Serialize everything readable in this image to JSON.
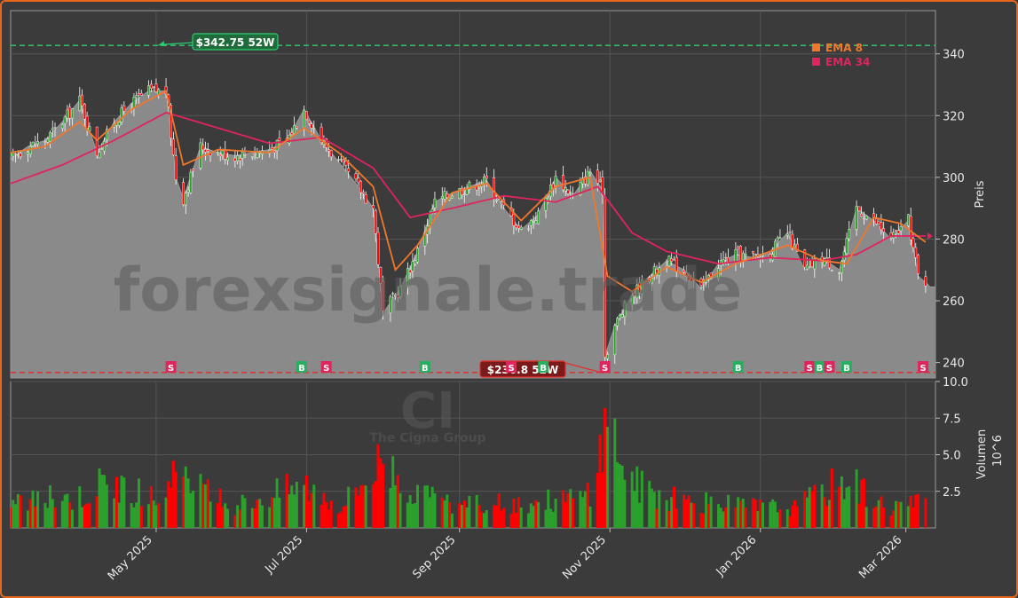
{
  "colors": {
    "background": "#3b3b3b",
    "panel": "#3b3b3b",
    "area_fill": "#8a8a8a",
    "grid": "#555555",
    "up": "#2ca02c",
    "down": "#ff0000",
    "ema8": "#f0772c",
    "ema34": "#e0245e",
    "high_line": "#2ecc71",
    "low_line": "#e03030",
    "buy": "#27ae60",
    "sell": "#e0245e",
    "text": "#e8e8e8",
    "frame": "#e8671c"
  },
  "watermark": {
    "site": "forexsignale.trade",
    "ticker": "CI",
    "company": "The Cigna Group"
  },
  "chart_data": [
    {
      "type": "line",
      "panel": "price",
      "ylabel": "Preis",
      "ylim": [
        235,
        354
      ],
      "y_ticks": [
        240,
        260,
        280,
        300,
        320,
        340
      ],
      "x_ticks": [
        {
          "date": "2025-05-01",
          "label": "May 2025"
        },
        {
          "date": "2025-07-01",
          "label": "Jul 2025"
        },
        {
          "date": "2025-09-01",
          "label": "Sep 2025"
        },
        {
          "date": "2025-11-01",
          "label": "Nov 2025"
        },
        {
          "date": "2026-01-01",
          "label": "Jan 2026"
        },
        {
          "date": "2026-03-01",
          "label": "Mar 2026"
        }
      ],
      "xlim": [
        "2025-03-03",
        "2026-03-13"
      ],
      "close_keypoints": [
        [
          "2025-03-03",
          306
        ],
        [
          "2025-03-10",
          310
        ],
        [
          "2025-03-17",
          312
        ],
        [
          "2025-03-24",
          318
        ],
        [
          "2025-03-31",
          325
        ],
        [
          "2025-04-07",
          308
        ],
        [
          "2025-04-14",
          318
        ],
        [
          "2025-04-21",
          324
        ],
        [
          "2025-04-28",
          328
        ],
        [
          "2025-05-05",
          328
        ],
        [
          "2025-05-09",
          300
        ],
        [
          "2025-05-12",
          293
        ],
        [
          "2025-05-19",
          310
        ],
        [
          "2025-05-26",
          308
        ],
        [
          "2025-06-02",
          307
        ],
        [
          "2025-06-09",
          308
        ],
        [
          "2025-06-16",
          309
        ],
        [
          "2025-06-23",
          312
        ],
        [
          "2025-06-30",
          322
        ],
        [
          "2025-07-07",
          312
        ],
        [
          "2025-07-14",
          305
        ],
        [
          "2025-07-21",
          298
        ],
        [
          "2025-07-28",
          290
        ],
        [
          "2025-08-01",
          256
        ],
        [
          "2025-08-08",
          264
        ],
        [
          "2025-08-15",
          276
        ],
        [
          "2025-08-22",
          292
        ],
        [
          "2025-08-29",
          295
        ],
        [
          "2025-09-05",
          297
        ],
        [
          "2025-09-12",
          299
        ],
        [
          "2025-09-19",
          290
        ],
        [
          "2025-09-26",
          283
        ],
        [
          "2025-10-03",
          288
        ],
        [
          "2025-10-10",
          300
        ],
        [
          "2025-10-17",
          294
        ],
        [
          "2025-10-24",
          302
        ],
        [
          "2025-10-29",
          296
        ],
        [
          "2025-10-30",
          242
        ],
        [
          "2025-11-03",
          252
        ],
        [
          "2025-11-10",
          262
        ],
        [
          "2025-11-17",
          268
        ],
        [
          "2025-11-24",
          273
        ],
        [
          "2025-12-01",
          270
        ],
        [
          "2025-12-08",
          264
        ],
        [
          "2025-12-15",
          272
        ],
        [
          "2025-12-22",
          275
        ],
        [
          "2025-12-29",
          274
        ],
        [
          "2026-01-05",
          276
        ],
        [
          "2026-01-12",
          282
        ],
        [
          "2026-01-19",
          270
        ],
        [
          "2026-01-26",
          274
        ],
        [
          "2026-02-02",
          270
        ],
        [
          "2026-02-09",
          290
        ],
        [
          "2026-02-16",
          286
        ],
        [
          "2026-02-23",
          280
        ],
        [
          "2026-03-02",
          286
        ],
        [
          "2026-03-06",
          268
        ],
        [
          "2026-03-09",
          266
        ]
      ],
      "ema8_keypoints": [
        [
          "2025-03-03",
          308
        ],
        [
          "2025-03-17",
          310
        ],
        [
          "2025-03-31",
          318
        ],
        [
          "2025-04-07",
          312
        ],
        [
          "2025-04-21",
          322
        ],
        [
          "2025-05-05",
          328
        ],
        [
          "2025-05-12",
          304
        ],
        [
          "2025-05-26",
          309
        ],
        [
          "2025-06-16",
          308
        ],
        [
          "2025-06-30",
          316
        ],
        [
          "2025-07-14",
          308
        ],
        [
          "2025-07-28",
          297
        ],
        [
          "2025-08-06",
          270
        ],
        [
          "2025-08-15",
          278
        ],
        [
          "2025-08-29",
          295
        ],
        [
          "2025-09-12",
          298
        ],
        [
          "2025-09-26",
          286
        ],
        [
          "2025-10-10",
          297
        ],
        [
          "2025-10-24",
          300
        ],
        [
          "2025-10-31",
          268
        ],
        [
          "2025-11-10",
          263
        ],
        [
          "2025-11-24",
          271
        ],
        [
          "2025-12-08",
          266
        ],
        [
          "2025-12-22",
          272
        ],
        [
          "2026-01-12",
          278
        ],
        [
          "2026-01-26",
          273
        ],
        [
          "2026-02-05",
          272
        ],
        [
          "2026-02-16",
          287
        ],
        [
          "2026-02-27",
          285
        ],
        [
          "2026-03-09",
          279
        ]
      ],
      "ema34_keypoints": [
        [
          "2025-03-03",
          298
        ],
        [
          "2025-03-24",
          304
        ],
        [
          "2025-04-14",
          312
        ],
        [
          "2025-05-05",
          321
        ],
        [
          "2025-05-26",
          316
        ],
        [
          "2025-06-16",
          311
        ],
        [
          "2025-07-07",
          313
        ],
        [
          "2025-07-28",
          303
        ],
        [
          "2025-08-12",
          287
        ],
        [
          "2025-08-29",
          290
        ],
        [
          "2025-09-19",
          294
        ],
        [
          "2025-10-10",
          292
        ],
        [
          "2025-10-27",
          297
        ],
        [
          "2025-11-10",
          282
        ],
        [
          "2025-11-24",
          276
        ],
        [
          "2025-12-15",
          272
        ],
        [
          "2026-01-05",
          274
        ],
        [
          "2026-01-26",
          273
        ],
        [
          "2026-02-09",
          275
        ],
        [
          "2026-02-23",
          281
        ],
        [
          "2026-03-09",
          281
        ]
      ],
      "last_price": 264.5,
      "high_52w": {
        "value": 342.75,
        "date": "2025-05-01",
        "label": "$342.75 52W"
      },
      "low_52w": {
        "value": 236.8,
        "date": "2025-10-31",
        "label": "$236.8 52W"
      },
      "signals": [
        {
          "date": "2025-05-07",
          "type": "S"
        },
        {
          "date": "2025-06-29",
          "type": "B"
        },
        {
          "date": "2025-07-09",
          "type": "S"
        },
        {
          "date": "2025-08-18",
          "type": "B"
        },
        {
          "date": "2025-09-22",
          "type": "S"
        },
        {
          "date": "2025-10-05",
          "type": "B"
        },
        {
          "date": "2025-10-30",
          "type": "S"
        },
        {
          "date": "2025-12-23",
          "type": "B"
        },
        {
          "date": "2026-01-21",
          "type": "S"
        },
        {
          "date": "2026-01-25",
          "type": "B"
        },
        {
          "date": "2026-01-29",
          "type": "S"
        },
        {
          "date": "2026-02-05",
          "type": "B"
        },
        {
          "date": "2026-03-08",
          "type": "S"
        }
      ],
      "legend": [
        {
          "name": "EMA 8",
          "color": "#f0772c"
        },
        {
          "name": "EMA 34",
          "color": "#e0245e"
        }
      ],
      "legend_position": "top-right",
      "grid": true
    },
    {
      "type": "bar",
      "panel": "volume",
      "ylabel": "Volumen",
      "unit_label": "10^6",
      "ylim": [
        0,
        10
      ],
      "y_ticks": [
        2.5,
        5.0,
        7.5,
        10.0
      ],
      "y_tick_labels": [
        "2.5",
        "5.0",
        "7.5",
        "10.0"
      ],
      "volume_keypoints": [
        [
          "2025-03-03",
          1.8
        ],
        [
          "2025-04-01",
          2.2
        ],
        [
          "2025-04-10",
          3.2
        ],
        [
          "2025-05-01",
          2.0
        ],
        [
          "2025-05-09",
          3.4
        ],
        [
          "2025-06-01",
          1.5
        ],
        [
          "2025-06-30",
          3.0
        ],
        [
          "2025-07-15",
          1.5
        ],
        [
          "2025-08-01",
          4.8
        ],
        [
          "2025-08-15",
          2.2
        ],
        [
          "2025-09-01",
          1.5
        ],
        [
          "2025-10-01",
          1.8
        ],
        [
          "2025-10-24",
          2.2
        ],
        [
          "2025-10-31",
          7.5
        ],
        [
          "2025-11-10",
          3.2
        ],
        [
          "2025-11-25",
          2.0
        ],
        [
          "2025-12-15",
          1.6
        ],
        [
          "2026-01-15",
          1.4
        ],
        [
          "2026-02-05",
          3.5
        ],
        [
          "2026-02-20",
          1.5
        ],
        [
          "2026-03-09",
          1.8
        ]
      ],
      "grid": true
    }
  ]
}
